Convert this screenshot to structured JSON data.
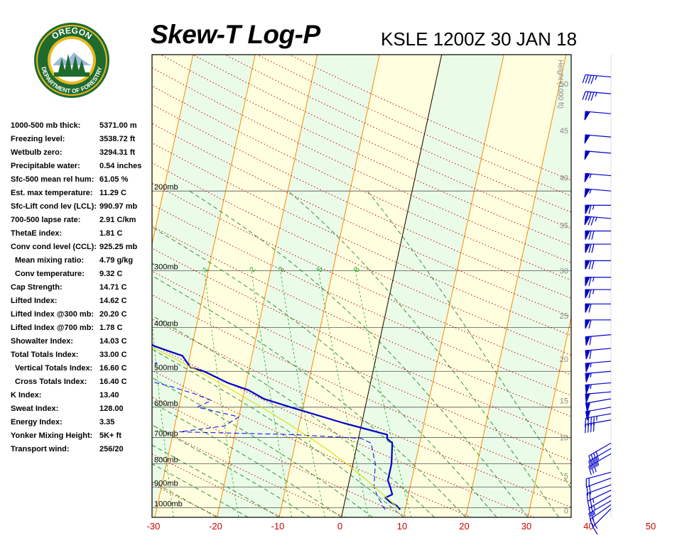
{
  "header": {
    "title": "Skew-T Log-P",
    "station": "KSLE 1200Z 30 JAN 18"
  },
  "logo": {
    "top_text": "OREGON",
    "bottom_text": "DEPARTMENT OF FORESTRY",
    "colors": {
      "ring": "#1f6b2e",
      "gold": "#e8b820",
      "tree": "#1f6b2e",
      "sky": "#ffffff"
    }
  },
  "indices": [
    {
      "label": "1000-500 mb thick:",
      "value": "5371.00 m"
    },
    {
      "label": "Freezing level:",
      "value": "3538.72 ft"
    },
    {
      "label": "Wetbulb zero:",
      "value": "3294.31 ft"
    },
    {
      "label": "Precipitable water:",
      "value": "0.54 inches"
    },
    {
      "label": "Sfc-500 mean rel hum:",
      "value": "61.05 %"
    },
    {
      "label": "Est. max temperature:",
      "value": "11.29 C"
    },
    {
      "label": "Sfc-Lift cond lev (LCL):",
      "value": "990.97 mb"
    },
    {
      "label": "700-500 lapse rate:",
      "value": "2.91 C/km"
    },
    {
      "label": "ThetaE index:",
      "value": "1.81 C"
    },
    {
      "label": "Conv cond level (CCL):",
      "value": "925.25 mb"
    },
    {
      "label": "Mean mixing ratio:",
      "value": "4.79 g/kg",
      "indent": true
    },
    {
      "label": "Conv temperature:",
      "value": "9.32 C",
      "indent": true
    },
    {
      "label": "Cap Strength:",
      "value": "14.71 C"
    },
    {
      "label": "Lifted Index:",
      "value": "14.62 C"
    },
    {
      "label": "Lifted Index @300 mb:",
      "value": "20.20 C"
    },
    {
      "label": "Lifted Index @700 mb:",
      "value": "1.78 C"
    },
    {
      "label": "Showalter Index:",
      "value": "14.03 C"
    },
    {
      "label": "Total Totals Index:",
      "value": "33.00 C"
    },
    {
      "label": "Vertical Totals Index:",
      "value": "16.60 C",
      "indent": true
    },
    {
      "label": "Cross Totals Index:",
      "value": "16.40 C",
      "indent": true
    },
    {
      "label": "K Index:",
      "value": "13.40"
    },
    {
      "label": "Sweat Index:",
      "value": "128.00"
    },
    {
      "label": "Energy Index:",
      "value": "3.35"
    },
    {
      "label": "Yonker Mixing Height:",
      "value": "5K+ ft"
    },
    {
      "label": "Transport wind:",
      "value": "256/20"
    }
  ],
  "chart_data": {
    "type": "line",
    "x_ticks": [
      -30,
      -20,
      -10,
      0,
      10,
      20,
      30,
      40,
      50
    ],
    "xlim": [
      -30,
      50
    ],
    "pressure_labels": [
      {
        "p": 200,
        "label": "200mb"
      },
      {
        "p": 300,
        "label": "300mb"
      },
      {
        "p": 400,
        "label": "400mb"
      },
      {
        "p": 500,
        "label": "500mb"
      },
      {
        "p": 600,
        "label": "600mb"
      },
      {
        "p": 700,
        "label": "700mb"
      },
      {
        "p": 800,
        "label": "800mb"
      },
      {
        "p": 900,
        "label": "900mb"
      },
      {
        "p": 1000,
        "label": "1000mb"
      }
    ],
    "height_axis_label": "Height (1000 ft)",
    "height_ticks": [
      {
        "label": "0",
        "p": 1014
      },
      {
        "label": "5",
        "p": 850
      },
      {
        "label": "10",
        "p": 700
      },
      {
        "label": "15",
        "p": 580
      },
      {
        "label": "20",
        "p": 470
      },
      {
        "label": "25",
        "p": 377
      },
      {
        "label": "30",
        "p": 300
      },
      {
        "label": "35",
        "p": 238
      },
      {
        "label": "40",
        "p": 187
      },
      {
        "label": "45",
        "p": 147
      },
      {
        "label": "50",
        "p": 116
      }
    ],
    "mixing_ratio_labels": [
      "0.4",
      "1",
      "2",
      "3",
      "5",
      "8"
    ],
    "series": [
      {
        "kind": "temperature",
        "points": [
          [
            1010,
            9.2
          ],
          [
            990,
            8.5
          ],
          [
            970,
            7.2
          ],
          [
            950,
            6.4
          ],
          [
            935,
            7.4
          ],
          [
            900,
            6.8
          ],
          [
            870,
            6.2
          ],
          [
            800,
            6.2
          ],
          [
            720,
            5.6
          ],
          [
            703,
            4.6
          ],
          [
            690,
            4.5
          ],
          [
            650,
            -3.0
          ],
          [
            600,
            -12.0
          ],
          [
            575,
            -16.6
          ],
          [
            550,
            -19.4
          ],
          [
            530,
            -23.0
          ],
          [
            500,
            -27.2
          ],
          [
            490,
            -29.5
          ],
          [
            462,
            -31.2
          ],
          [
            440,
            -36.0
          ],
          [
            410,
            -40.5
          ],
          [
            380,
            -45.0
          ],
          [
            345,
            -50.0
          ],
          [
            320,
            -53.5
          ],
          [
            300,
            -55.2
          ],
          [
            280,
            -58.0
          ],
          [
            250,
            -61.0
          ],
          [
            220,
            -63.5
          ],
          [
            200,
            -65.0
          ],
          [
            180,
            -66.5
          ],
          [
            165,
            -67.5
          ],
          [
            155,
            -66.0
          ],
          [
            150,
            -64.0
          ],
          [
            135,
            -62.0
          ],
          [
            125,
            -60.5
          ],
          [
            115,
            -59.5
          ]
        ]
      },
      {
        "kind": "dewpoint",
        "points": [
          [
            1010,
            6.8
          ],
          [
            990,
            6.2
          ],
          [
            970,
            5.8
          ],
          [
            950,
            5.2
          ],
          [
            900,
            4.2
          ],
          [
            800,
            3.6
          ],
          [
            720,
            2.2
          ],
          [
            703,
            0.4
          ],
          [
            690,
            -10.0
          ],
          [
            680,
            -29.0
          ],
          [
            660,
            -22.0
          ],
          [
            630,
            -20.0
          ],
          [
            600,
            -27.0
          ],
          [
            580,
            -25.0
          ],
          [
            560,
            -28.0
          ],
          [
            540,
            -32.0
          ],
          [
            520,
            -37.0
          ],
          [
            500,
            -39.5
          ],
          [
            480,
            -35.0
          ],
          [
            460,
            -38.0
          ],
          [
            440,
            -40.0
          ],
          [
            420,
            -44.0
          ],
          [
            400,
            -47.0
          ],
          [
            380,
            -48.0
          ],
          [
            360,
            -50.0
          ],
          [
            340,
            -52.0
          ],
          [
            320,
            -55.0
          ],
          [
            300,
            -57.0
          ],
          [
            290,
            -60.5
          ],
          [
            270,
            -66.0
          ],
          [
            255,
            -72.0
          ],
          [
            245,
            -75.0
          ],
          [
            235,
            -77.0
          ],
          [
            225,
            -81.0
          ],
          [
            215,
            -86.0
          ],
          [
            200,
            -91.0
          ],
          [
            185,
            -92.0
          ],
          [
            170,
            -88.0
          ],
          [
            160,
            -86.0
          ],
          [
            150,
            -88.0
          ],
          [
            140,
            -89.0
          ],
          [
            125,
            -90.0
          ],
          [
            115,
            -92.0
          ]
        ]
      },
      {
        "kind": "parcel",
        "points": [
          [
            1010,
            9.0
          ],
          [
            990,
            8.3
          ],
          [
            950,
            6.6
          ],
          [
            900,
            4.3
          ],
          [
            850,
            1.8
          ],
          [
            800,
            -1.0
          ],
          [
            750,
            -4.2
          ],
          [
            700,
            -7.9
          ],
          [
            650,
            -12.0
          ],
          [
            600,
            -16.7
          ],
          [
            550,
            -22.0
          ],
          [
            500,
            -28.0
          ],
          [
            460,
            -33.6
          ],
          [
            430,
            -38.4
          ]
        ]
      }
    ],
    "wind_barbs": [
      {
        "p": 1005,
        "dir": 225,
        "spd": 15
      },
      {
        "p": 985,
        "dir": 235,
        "spd": 20
      },
      {
        "p": 965,
        "dir": 240,
        "spd": 25
      },
      {
        "p": 940,
        "dir": 240,
        "spd": 25
      },
      {
        "p": 915,
        "dir": 245,
        "spd": 25
      },
      {
        "p": 890,
        "dir": 250,
        "spd": 20
      },
      {
        "p": 860,
        "dir": 250,
        "spd": 20
      },
      {
        "p": 835,
        "dir": 255,
        "spd": 20
      },
      {
        "p": 760,
        "dir": 240,
        "spd": 35
      },
      {
        "p": 740,
        "dir": 240,
        "spd": 40
      },
      {
        "p": 720,
        "dir": 240,
        "spd": 40
      },
      {
        "p": 640,
        "dir": 260,
        "spd": 40
      },
      {
        "p": 620,
        "dir": 260,
        "spd": 45
      },
      {
        "p": 600,
        "dir": 260,
        "spd": 50
      },
      {
        "p": 575,
        "dir": 260,
        "spd": 50
      },
      {
        "p": 555,
        "dir": 265,
        "spd": 50
      },
      {
        "p": 530,
        "dir": 265,
        "spd": 55
      },
      {
        "p": 500,
        "dir": 265,
        "spd": 55
      },
      {
        "p": 475,
        "dir": 265,
        "spd": 55
      },
      {
        "p": 445,
        "dir": 265,
        "spd": 60
      },
      {
        "p": 415,
        "dir": 265,
        "spd": 60
      },
      {
        "p": 385,
        "dir": 270,
        "spd": 60
      },
      {
        "p": 355,
        "dir": 270,
        "spd": 60
      },
      {
        "p": 330,
        "dir": 270,
        "spd": 65
      },
      {
        "p": 310,
        "dir": 270,
        "spd": 65
      },
      {
        "p": 285,
        "dir": 270,
        "spd": 70
      },
      {
        "p": 262,
        "dir": 270,
        "spd": 70
      },
      {
        "p": 245,
        "dir": 270,
        "spd": 70
      },
      {
        "p": 230,
        "dir": 275,
        "spd": 75
      },
      {
        "p": 215,
        "dir": 270,
        "spd": 65
      },
      {
        "p": 200,
        "dir": 275,
        "spd": 55
      },
      {
        "p": 185,
        "dir": 275,
        "spd": 55
      },
      {
        "p": 165,
        "dir": 275,
        "spd": 50
      },
      {
        "p": 152,
        "dir": 275,
        "spd": 50
      },
      {
        "p": 135,
        "dir": 275,
        "spd": 50
      },
      {
        "p": 122,
        "dir": 275,
        "spd": 45
      },
      {
        "p": 112,
        "dir": 275,
        "spd": 45
      }
    ],
    "colors": {
      "temperature": "#0000cc",
      "dewpoint": "#0000ee",
      "parcel": "#dddd00",
      "isotherm": "#ff8800",
      "dry_adiabat": "#cc0000",
      "moist_adiabat": "#228822",
      "mixing_ratio": "#22aa22",
      "isobar": "#555555",
      "band_green": "#eafbe8",
      "band_yellow": "#ffffe0",
      "x_tick_label": "#cc0000",
      "barb": "#0000cc"
    }
  }
}
